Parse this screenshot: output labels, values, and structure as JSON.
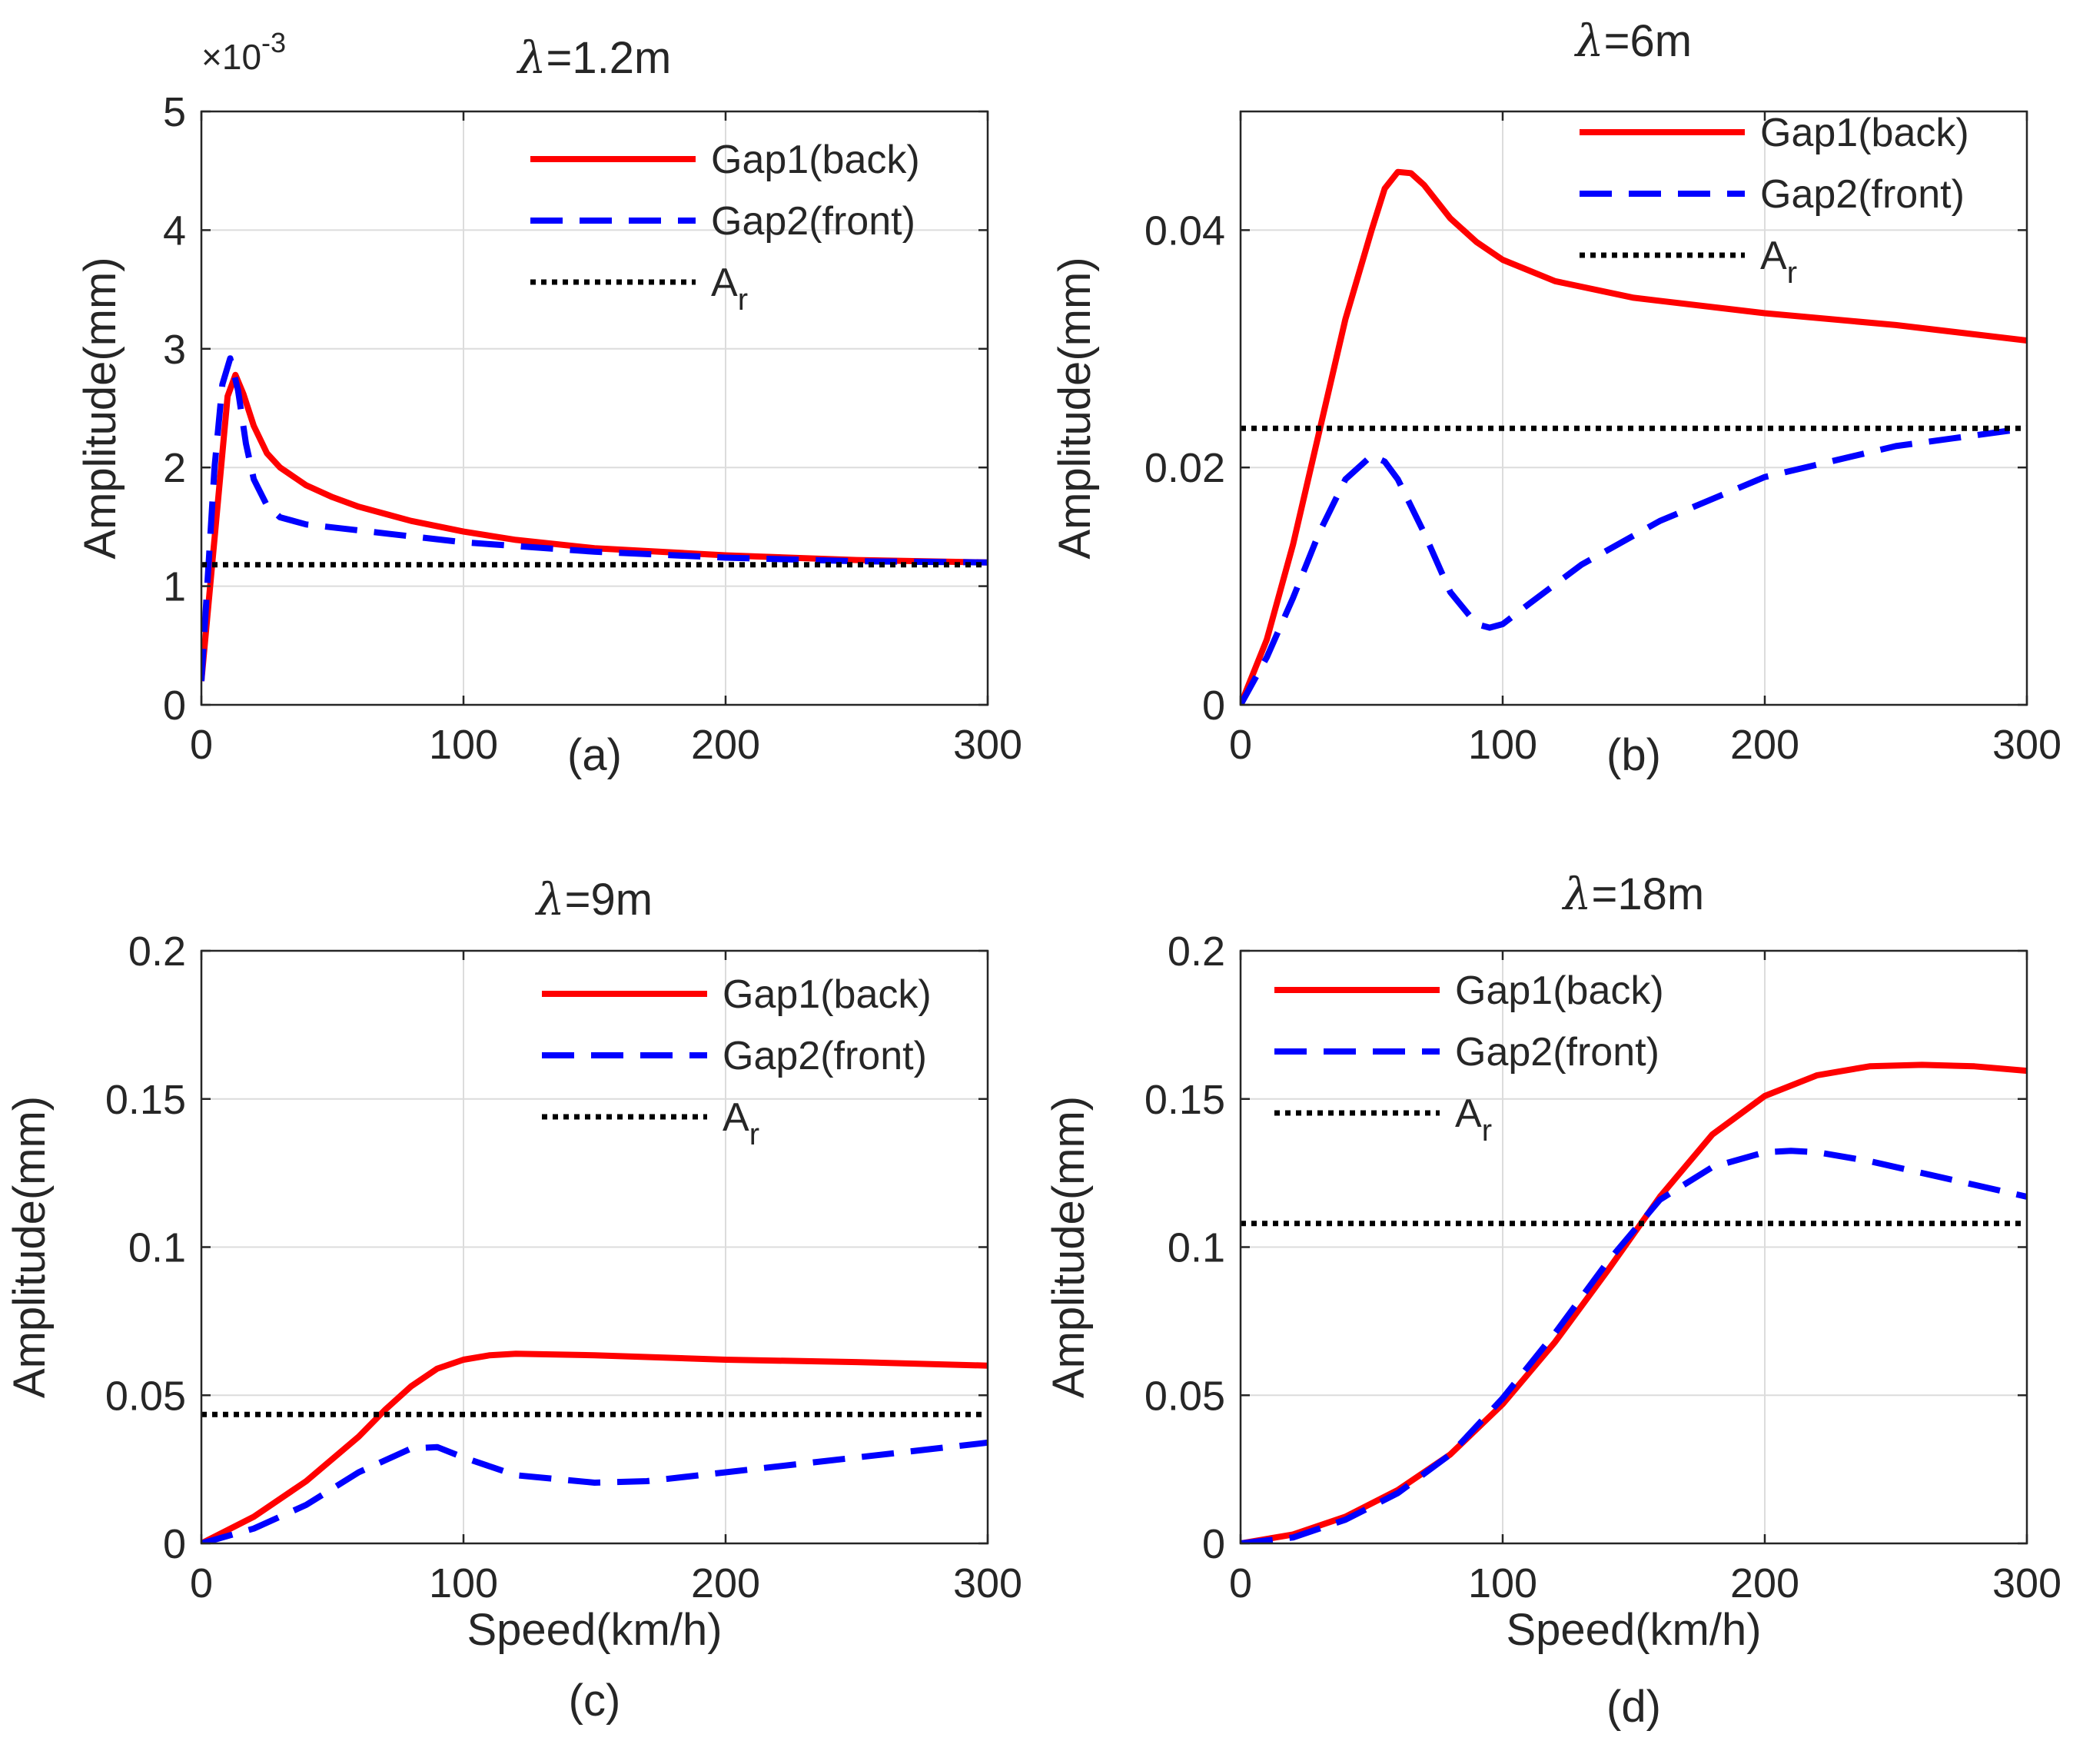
{
  "chart_data": [
    {
      "type": "line",
      "id": "a",
      "title_symbol": "λ",
      "title_text": "=1.2m",
      "panel_label": "(a)",
      "ylabel": "Amplitude(mm)",
      "xlabel": "",
      "xlim": [
        0,
        300
      ],
      "ylim": [
        0,
        5
      ],
      "xticks": [
        0,
        100,
        200,
        300
      ],
      "yticks": [
        0,
        1,
        2,
        3,
        4,
        5
      ],
      "ytick_labels": [
        "0",
        "1",
        "2",
        "3",
        "4",
        "5"
      ],
      "exponent_label": "×10",
      "exponent_power": "-3",
      "grid": true,
      "legend_position": "top-right",
      "series": [
        {
          "name": "Gap1(back)",
          "style": "solid",
          "color": "#ff0000",
          "x": [
            0,
            5,
            10,
            13,
            16,
            20,
            25,
            30,
            40,
            50,
            60,
            80,
            100,
            120,
            150,
            200,
            250,
            300
          ],
          "y": [
            0.2,
            1.4,
            2.6,
            2.78,
            2.62,
            2.35,
            2.12,
            2.0,
            1.85,
            1.75,
            1.67,
            1.55,
            1.46,
            1.39,
            1.32,
            1.26,
            1.22,
            1.2
          ]
        },
        {
          "name": "Gap2(front)",
          "style": "dashed",
          "color": "#0000ff",
          "x": [
            0,
            5,
            8,
            11,
            14,
            17,
            20,
            25,
            30,
            40,
            60,
            80,
            100,
            150,
            200,
            250,
            300
          ],
          "y": [
            0.2,
            2.0,
            2.7,
            2.92,
            2.65,
            2.2,
            1.9,
            1.68,
            1.58,
            1.52,
            1.47,
            1.42,
            1.37,
            1.29,
            1.24,
            1.21,
            1.2
          ]
        },
        {
          "name": "A",
          "name_sub": "r",
          "style": "dotted",
          "color": "#000000",
          "x": [
            0,
            300
          ],
          "y": [
            1.18,
            1.18
          ]
        }
      ]
    },
    {
      "type": "line",
      "id": "b",
      "title_symbol": "λ",
      "title_text": "=6m",
      "panel_label": "(b)",
      "ylabel": "Amplitude(mm)",
      "xlabel": "",
      "xlim": [
        0,
        300
      ],
      "ylim": [
        0,
        0.05
      ],
      "xticks": [
        0,
        100,
        200,
        300
      ],
      "yticks": [
        0,
        0.02,
        0.04
      ],
      "ytick_labels": [
        "0",
        "0.02",
        "0.04"
      ],
      "grid": true,
      "legend_position": "top-right",
      "series": [
        {
          "name": "Gap1(back)",
          "style": "solid",
          "color": "#ff0000",
          "x": [
            0,
            10,
            20,
            30,
            40,
            50,
            55,
            60,
            65,
            70,
            80,
            90,
            100,
            120,
            150,
            200,
            250,
            300
          ],
          "y": [
            0.0,
            0.0055,
            0.0135,
            0.023,
            0.0325,
            0.04,
            0.0435,
            0.0449,
            0.0448,
            0.0438,
            0.041,
            0.039,
            0.0375,
            0.0357,
            0.0343,
            0.033,
            0.032,
            0.0307
          ]
        },
        {
          "name": "Gap2(front)",
          "style": "dashed",
          "color": "#0000ff",
          "x": [
            0,
            10,
            20,
            30,
            40,
            50,
            55,
            60,
            70,
            80,
            90,
            95,
            100,
            110,
            130,
            160,
            200,
            250,
            300
          ],
          "y": [
            0.0,
            0.004,
            0.009,
            0.0145,
            0.019,
            0.021,
            0.0205,
            0.019,
            0.0145,
            0.0095,
            0.0068,
            0.0065,
            0.0068,
            0.0085,
            0.0118,
            0.0155,
            0.0192,
            0.0218,
            0.0233
          ]
        },
        {
          "name": "A",
          "name_sub": "r",
          "style": "dotted",
          "color": "#000000",
          "x": [
            0,
            300
          ],
          "y": [
            0.0233,
            0.0233
          ]
        }
      ]
    },
    {
      "type": "line",
      "id": "c",
      "title_symbol": "λ",
      "title_text": "=9m",
      "panel_label": "(c)",
      "ylabel": "Amplitude(mm)",
      "xlabel": "Speed(km/h)",
      "xlim": [
        0,
        300
      ],
      "ylim": [
        0,
        0.2
      ],
      "xticks": [
        0,
        100,
        200,
        300
      ],
      "yticks": [
        0,
        0.05,
        0.1,
        0.15,
        0.2
      ],
      "ytick_labels": [
        "0",
        "0.05",
        "0.1",
        "0.15",
        "0.2"
      ],
      "grid": true,
      "legend_position": "top-right",
      "series": [
        {
          "name": "Gap1(back)",
          "style": "solid",
          "color": "#ff0000",
          "x": [
            0,
            20,
            40,
            60,
            70,
            80,
            90,
            100,
            110,
            120,
            150,
            200,
            250,
            300
          ],
          "y": [
            0.0,
            0.009,
            0.021,
            0.036,
            0.045,
            0.053,
            0.059,
            0.062,
            0.0635,
            0.064,
            0.0635,
            0.062,
            0.0612,
            0.06
          ]
        },
        {
          "name": "Gap2(front)",
          "style": "dashed",
          "color": "#0000ff",
          "x": [
            0,
            20,
            40,
            60,
            80,
            90,
            100,
            120,
            150,
            170,
            200,
            250,
            300
          ],
          "y": [
            0.0,
            0.005,
            0.013,
            0.024,
            0.032,
            0.0325,
            0.029,
            0.023,
            0.0205,
            0.021,
            0.024,
            0.029,
            0.034
          ]
        },
        {
          "name": "A",
          "name_sub": "r",
          "style": "dotted",
          "color": "#000000",
          "x": [
            0,
            300
          ],
          "y": [
            0.0435,
            0.0435
          ]
        }
      ]
    },
    {
      "type": "line",
      "id": "d",
      "title_symbol": "λ",
      "title_text": "=18m",
      "panel_label": "(d)",
      "ylabel": "Amplitude(mm)",
      "xlabel": "Speed(km/h)",
      "xlim": [
        0,
        300
      ],
      "ylim": [
        0,
        0.2
      ],
      "xticks": [
        0,
        100,
        200,
        300
      ],
      "yticks": [
        0,
        0.05,
        0.1,
        0.15,
        0.2
      ],
      "ytick_labels": [
        "0",
        "0.05",
        "0.1",
        "0.15",
        "0.2"
      ],
      "grid": true,
      "legend_position": "top-left",
      "series": [
        {
          "name": "Gap1(back)",
          "style": "solid",
          "color": "#ff0000",
          "x": [
            0,
            20,
            40,
            60,
            80,
            100,
            120,
            140,
            160,
            180,
            200,
            220,
            240,
            260,
            280,
            300
          ],
          "y": [
            0.0,
            0.003,
            0.009,
            0.018,
            0.03,
            0.047,
            0.068,
            0.092,
            0.117,
            0.138,
            0.151,
            0.158,
            0.161,
            0.1615,
            0.161,
            0.1595
          ]
        },
        {
          "name": "Gap2(front)",
          "style": "dashed",
          "color": "#0000ff",
          "x": [
            0,
            20,
            40,
            60,
            80,
            100,
            120,
            140,
            160,
            180,
            200,
            210,
            220,
            240,
            260,
            280,
            300
          ],
          "y": [
            0.0,
            0.002,
            0.008,
            0.017,
            0.03,
            0.049,
            0.071,
            0.095,
            0.116,
            0.127,
            0.132,
            0.1325,
            0.132,
            0.129,
            0.125,
            0.121,
            0.117
          ]
        },
        {
          "name": "A",
          "name_sub": "r",
          "style": "dotted",
          "color": "#000000",
          "x": [
            0,
            300
          ],
          "y": [
            0.108,
            0.108
          ]
        }
      ]
    }
  ]
}
